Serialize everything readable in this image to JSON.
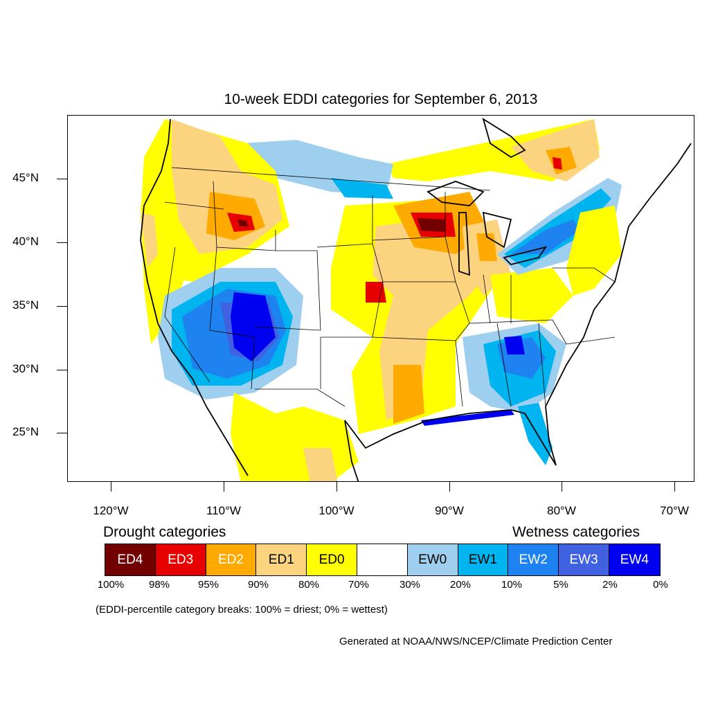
{
  "title": "10-week EDDI categories for September 6, 2013",
  "latitude_labels": [
    "45°N",
    "40°N",
    "35°N",
    "30°N",
    "25°N"
  ],
  "longitude_labels": [
    "120°W",
    "110°W",
    "100°W",
    "90°W",
    "80°W",
    "70°W"
  ],
  "legend": {
    "drought_heading": "Drought categories",
    "wetness_heading": "Wetness categories",
    "categories": [
      {
        "label": "ED4",
        "color": "#730000",
        "text_color": "#ffffff"
      },
      {
        "label": "ED3",
        "color": "#e60000",
        "text_color": "#ffffff"
      },
      {
        "label": "ED2",
        "color": "#ffaa00",
        "text_color": "#ffffff"
      },
      {
        "label": "ED1",
        "color": "#fcd37f",
        "text_color": "#000000"
      },
      {
        "label": "ED0",
        "color": "#ffff00",
        "text_color": "#000000"
      },
      {
        "label": "",
        "color": "#ffffff",
        "text_color": "#000000"
      },
      {
        "label": "EW0",
        "color": "#9fcfee",
        "text_color": "#000000"
      },
      {
        "label": "EW1",
        "color": "#00b4f0",
        "text_color": "#000000"
      },
      {
        "label": "EW2",
        "color": "#1e82f0",
        "text_color": "#ffffff"
      },
      {
        "label": "EW3",
        "color": "#4062e0",
        "text_color": "#ffffff"
      },
      {
        "label": "EW4",
        "color": "#0000f0",
        "text_color": "#ffffff"
      }
    ],
    "percentiles": [
      "100%",
      "98%",
      "95%",
      "90%",
      "80%",
      "70%",
      "30%",
      "20%",
      "10%",
      "5%",
      "2%",
      "0%"
    ]
  },
  "note": "(EDDI-percentile category breaks: 100% = driest; 0% = wettest)",
  "credit": "Generated at NOAA/NWS/NCEP/Climate Prediction Center"
}
